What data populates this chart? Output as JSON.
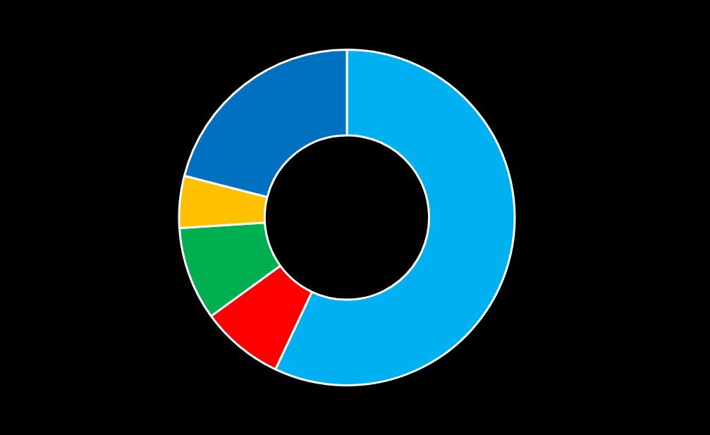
{
  "chart_data": {
    "type": "donut",
    "categories": [
      null,
      null,
      null,
      null,
      null
    ],
    "values": [
      57,
      8,
      9,
      5,
      21
    ],
    "colors": [
      "#00b0f0",
      "#ff0000",
      "#00b050",
      "#ffc000",
      "#0070c0"
    ]
  }
}
